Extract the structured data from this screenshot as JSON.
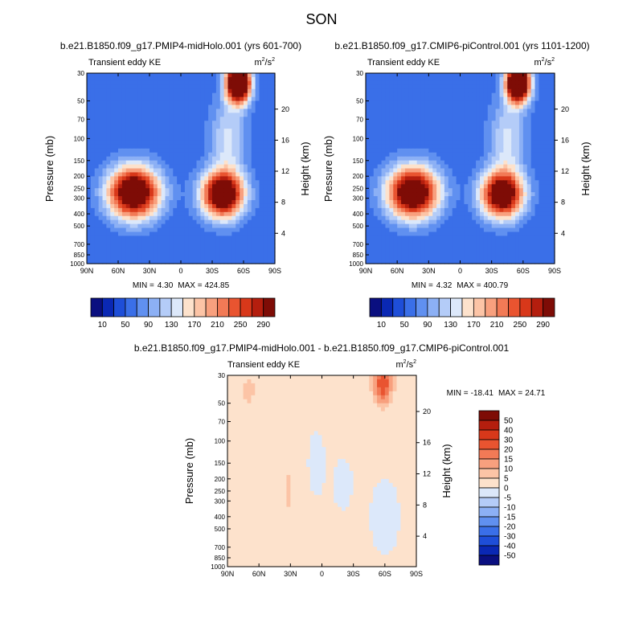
{
  "season": "SON",
  "colors": {
    "abs_palette": [
      "#0a0f80",
      "#0a28b4",
      "#1e4ed8",
      "#3a6fe8",
      "#6090f0",
      "#8cb0f5",
      "#b4ccf8",
      "#dce8fa",
      "#fde2cc",
      "#fcc4a6",
      "#f8a07e",
      "#f27a56",
      "#e95430",
      "#d8381a",
      "#b41e0e",
      "#7e0c06"
    ],
    "diff_palette": [
      "#0a0f80",
      "#0a28b4",
      "#1e4ed8",
      "#3a6fe8",
      "#6090f0",
      "#8cb0f5",
      "#b4ccf8",
      "#dce8fa",
      "#fde2cc",
      "#fcc4a6",
      "#f8a07e",
      "#f27a56",
      "#e95430",
      "#d8381a",
      "#b41e0e",
      "#7e0c06"
    ]
  },
  "chart_data": [
    {
      "type": "heatmap",
      "id": "panel1",
      "title": "b.e21.B1850.f09_g17.PMIP4-midHolo.001 (yrs 601-700)",
      "subtitle_left": "Transient eddy KE",
      "units_base": "m",
      "units_sup1": "2",
      "units_mid": "/s",
      "units_sup2": "2",
      "xlabel": "",
      "ylabel": "Pressure (mb)",
      "ylabel_right": "Height (km)",
      "x_ticks": [
        "90N",
        "60N",
        "30N",
        "0",
        "30S",
        "60S",
        "90S"
      ],
      "y_ticks": [
        "30",
        "50",
        "70",
        "100",
        "150",
        "200",
        "250",
        "300",
        "400",
        "500",
        "700",
        "850",
        "1000"
      ],
      "height_ticks": [
        "4",
        "8",
        "12",
        "16",
        "20"
      ],
      "min_label": "MIN =",
      "min_value": "4.30",
      "max_label": "MAX =",
      "max_value": "424.85",
      "colorbar_labels": [
        "10",
        "50",
        "90",
        "130",
        "170",
        "210",
        "250",
        "290"
      ],
      "blobs": [
        {
          "lat": 45,
          "p": 270,
          "amp": 330,
          "slat": 17,
          "sp": 0.33
        },
        {
          "lat": -40,
          "p": 280,
          "amp": 320,
          "slat": 14,
          "sp": 0.3
        },
        {
          "lat": -55,
          "p": 36,
          "amp": 420,
          "slat": 8,
          "sp": 0.25
        },
        {
          "lat": -45,
          "p": 100,
          "amp": 80,
          "slat": 12,
          "sp": 0.5
        }
      ],
      "base": 55
    },
    {
      "type": "heatmap",
      "id": "panel2",
      "title": "b.e21.B1850.f09_g17.CMIP6-piControl.001 (yrs 1101-1200)",
      "subtitle_left": "Transient eddy KE",
      "units_base": "m",
      "units_sup1": "2",
      "units_mid": "/s",
      "units_sup2": "2",
      "xlabel": "",
      "ylabel": "Pressure (mb)",
      "ylabel_right": "Height (km)",
      "x_ticks": [
        "90N",
        "60N",
        "30N",
        "0",
        "30S",
        "60S",
        "90S"
      ],
      "y_ticks": [
        "30",
        "50",
        "70",
        "100",
        "150",
        "200",
        "250",
        "300",
        "400",
        "500",
        "700",
        "850",
        "1000"
      ],
      "height_ticks": [
        "4",
        "8",
        "12",
        "16",
        "20"
      ],
      "min_label": "MIN =",
      "min_value": "4.32",
      "max_label": "MAX =",
      "max_value": "400.79",
      "colorbar_labels": [
        "10",
        "50",
        "90",
        "130",
        "170",
        "210",
        "250",
        "290"
      ],
      "blobs": [
        {
          "lat": 45,
          "p": 270,
          "amp": 320,
          "slat": 17,
          "sp": 0.33
        },
        {
          "lat": -40,
          "p": 280,
          "amp": 310,
          "slat": 14,
          "sp": 0.3
        },
        {
          "lat": -55,
          "p": 36,
          "amp": 400,
          "slat": 8,
          "sp": 0.25
        },
        {
          "lat": -45,
          "p": 100,
          "amp": 80,
          "slat": 12,
          "sp": 0.5
        }
      ],
      "base": 55
    },
    {
      "type": "heatmap",
      "id": "panel3",
      "title": "b.e21.B1850.f09_g17.PMIP4-midHolo.001 - b.e21.B1850.f09_g17.CMIP6-piControl.001",
      "subtitle_left": "Transient eddy KE",
      "units_base": "m",
      "units_sup1": "2",
      "units_mid": "/s",
      "units_sup2": "2",
      "xlabel": "",
      "ylabel": "Pressure (mb)",
      "ylabel_right": "Height (km)",
      "x_ticks": [
        "90N",
        "60N",
        "30N",
        "0",
        "30S",
        "60S",
        "90S"
      ],
      "y_ticks": [
        "30",
        "50",
        "70",
        "100",
        "150",
        "200",
        "250",
        "300",
        "400",
        "500",
        "700",
        "850",
        "1000"
      ],
      "height_ticks": [
        "4",
        "8",
        "12",
        "16",
        "20"
      ],
      "min_label": "MIN =",
      "min_value": "-18.41",
      "max_label": "MAX =",
      "max_value": "24.71",
      "colorbar_labels": [
        "50",
        "40",
        "30",
        "20",
        "15",
        "10",
        "5",
        "0",
        "-5",
        "-10",
        "-15",
        "-20",
        "-30",
        "-40",
        "-50"
      ],
      "blobs": [
        {
          "lat": -58,
          "p": 35,
          "amp": 24,
          "slat": 6,
          "sp": 0.25
        },
        {
          "lat": 70,
          "p": 40,
          "amp": 4,
          "slat": 10,
          "sp": 0.4
        },
        {
          "lat": 32,
          "p": 250,
          "amp": 4,
          "slat": 5,
          "sp": 0.6
        },
        {
          "lat": -20,
          "p": 220,
          "amp": -5,
          "slat": 6,
          "sp": 0.3
        },
        {
          "lat": 5,
          "p": 150,
          "amp": -3,
          "slat": 7,
          "sp": 0.5
        },
        {
          "lat": -60,
          "p": 400,
          "amp": -4,
          "slat": 10,
          "sp": 0.5
        }
      ],
      "base": 1.5
    }
  ]
}
